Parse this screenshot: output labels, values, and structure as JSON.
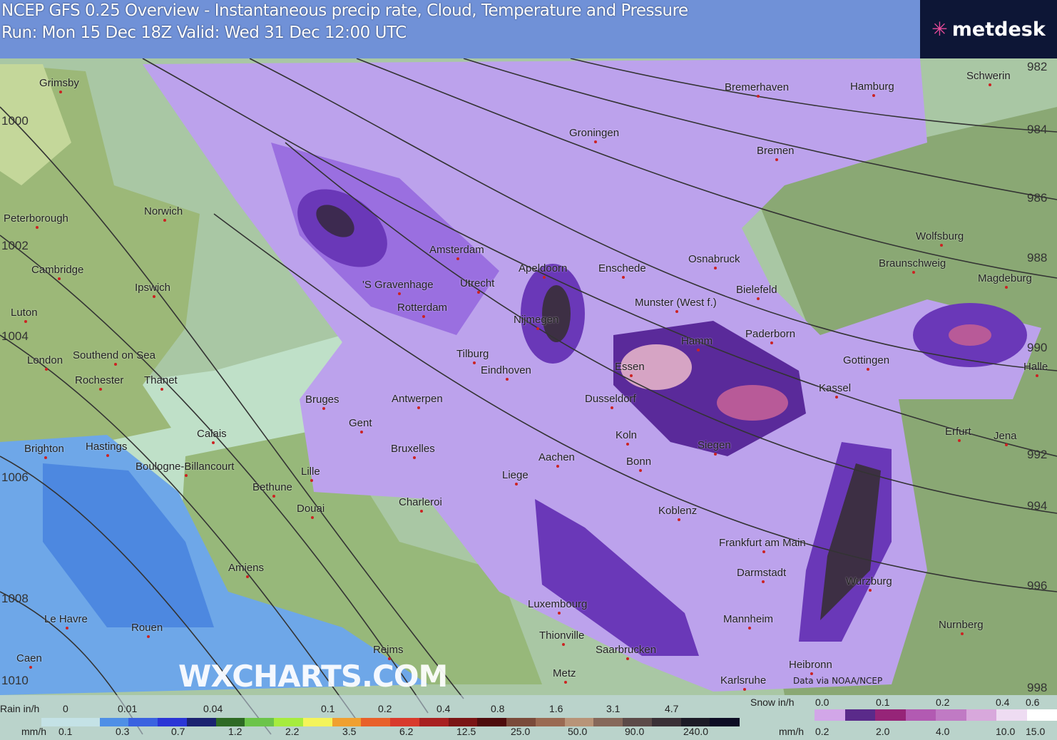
{
  "header": {
    "title": "NCEP GFS 0.25 Overview - Instantaneous precip rate, Cloud, Temperature and Pressure",
    "run": "Run: Mon 15 Dec 18Z Valid: Wed 31 Dec 12:00 UTC"
  },
  "logo": {
    "text": "metdesk"
  },
  "watermark": "WXCHARTS.COM",
  "source": "Data via NOAA/NCEP",
  "cities": [
    "Grimsby",
    "Peterborough",
    "Norwich",
    "Cambridge",
    "Ipswich",
    "Luton",
    "Southend on Sea",
    "London",
    "Rochester",
    "Thanet",
    "Brighton",
    "Hastings",
    "Calais",
    "Boulogne-Billancourt",
    "Bethune",
    "Lille",
    "Douai",
    "Amiens",
    "Le Havre",
    "Rouen",
    "Caen",
    "Reims",
    "Bruges",
    "Gent",
    "Antwerpen",
    "Bruxelles",
    "Charleroi",
    "Liege",
    "Amsterdam",
    "'S Gravenhage",
    "Rotterdam",
    "Utrecht",
    "Apeldoorn",
    "Enschede",
    "Nijmegen",
    "Tilburg",
    "Eindhoven",
    "Groningen",
    "Bremerhaven",
    "Hamburg",
    "Schwerin",
    "Bremen",
    "Osnabruck",
    "Munster (West f.)",
    "Bielefeld",
    "Paderborn",
    "Hamm",
    "Essen",
    "Dusseldorf",
    "Koln",
    "Bonn",
    "Aachen",
    "Siegen",
    "Koblenz",
    "Frankfurt am Main",
    "Darmstadt",
    "Mannheim",
    "Wurzburg",
    "Nurnberg",
    "Heibronn",
    "Karlsruhe",
    "Saarbrucken",
    "Metz",
    "Thionville",
    "Luxembourg",
    "Kassel",
    "Gottingen",
    "Erfurt",
    "Jena",
    "Halle",
    "Magdeburg",
    "Braunschweig",
    "Wolfsburg"
  ],
  "isobars": [
    "1000",
    "1002",
    "1004",
    "1006",
    "1008",
    "1010",
    "982",
    "984",
    "986",
    "988",
    "990",
    "992",
    "994",
    "996",
    "998"
  ],
  "legend": {
    "rain_label": "Rain in/h",
    "rain_mm_label": "mm/h",
    "rain_in": [
      "0",
      "0.01",
      "0.04",
      "0.1",
      "0.2",
      "0.4",
      "0.8",
      "1.6",
      "3.1",
      "4.7"
    ],
    "rain_mm": [
      "0.1",
      "0.3",
      "0.7",
      "1.2",
      "2.2",
      "3.5",
      "6.2",
      "12.5",
      "25.0",
      "50.0",
      "90.0",
      "240.0"
    ],
    "rain_colors": [
      "#c4e2e6",
      "#c4e2e6",
      "#4f8fe6",
      "#3a62e0",
      "#2a35d6",
      "#1b2270",
      "#2e6a24",
      "#6cc44a",
      "#a6ec3e",
      "#f4f45a",
      "#f0a030",
      "#e8602a",
      "#d83a2c",
      "#a82020",
      "#7a1414",
      "#4e0c0c",
      "#7a4a3a",
      "#9a6a52",
      "#b89478",
      "#86685a",
      "#5c4a48",
      "#3a3036",
      "#1c1a26",
      "#0c0c24"
    ],
    "snow_label": "Snow in/h",
    "snow_mm_label": "mm/h",
    "snow_in": [
      "0.0",
      "0.1",
      "0.2",
      "0.4",
      "0.6"
    ],
    "snow_mm": [
      "0.2",
      "2.0",
      "4.0",
      "10.0",
      "15.0"
    ],
    "snow_colors": [
      "#d2a6e8",
      "#5a2a8a",
      "#962478",
      "#b25ab2",
      "#c07ac4",
      "#d8a8dc",
      "#eedcf2",
      "#ffffff"
    ]
  }
}
